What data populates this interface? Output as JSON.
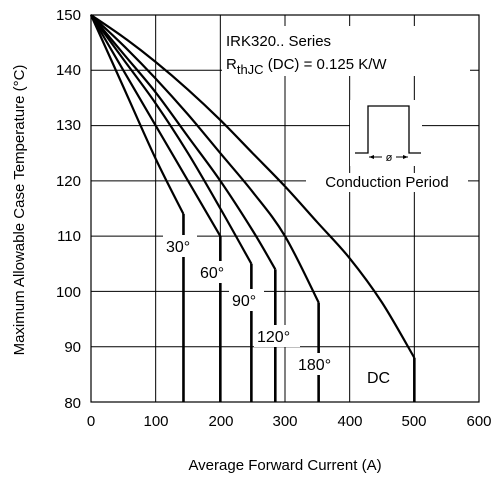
{
  "chart_data": {
    "type": "line",
    "xlabel": "Average Forward Current (A)",
    "ylabel": "Maximum Allowable Case Temperature (°C)",
    "xlim": [
      0,
      600
    ],
    "ylim": [
      80,
      150
    ],
    "x_ticks": [
      "0",
      "100",
      "200",
      "300",
      "400",
      "500",
      "600"
    ],
    "y_ticks": [
      "80",
      "90",
      "100",
      "110",
      "120",
      "130",
      "140",
      "150"
    ],
    "grid": true,
    "annotations": {
      "series_title": "IRK320.. Series",
      "rth_prefix": "R",
      "rth_sub": "thJC",
      "rth_suffix": " (DC) = 0.125 K/W",
      "phi": "ø",
      "conduction": "Conduction Period"
    },
    "series": [
      {
        "name": "30°",
        "x": [
          0,
          50,
          100,
          143,
          143
        ],
        "y": [
          150,
          137,
          124,
          114,
          80
        ]
      },
      {
        "name": "60°",
        "x": [
          0,
          50,
          100,
          150,
          200,
          200
        ],
        "y": [
          150,
          140,
          130,
          120,
          110,
          80
        ]
      },
      {
        "name": "90°",
        "x": [
          0,
          50,
          100,
          150,
          200,
          248,
          248
        ],
        "y": [
          150,
          142,
          134,
          125,
          115,
          105,
          80
        ]
      },
      {
        "name": "120°",
        "x": [
          0,
          50,
          100,
          150,
          200,
          250,
          285,
          285
        ],
        "y": [
          150,
          143,
          136,
          128,
          120,
          111,
          104,
          80
        ]
      },
      {
        "name": "180°",
        "x": [
          0,
          50,
          100,
          150,
          200,
          250,
          300,
          352,
          352
        ],
        "y": [
          150,
          144.5,
          138.5,
          132,
          125,
          118,
          110,
          98,
          80
        ]
      },
      {
        "name": "DC",
        "x": [
          0,
          50,
          100,
          150,
          200,
          250,
          300,
          350,
          400,
          450,
          500,
          500
        ],
        "y": [
          150,
          146,
          141.5,
          136.5,
          131,
          125,
          119,
          112.5,
          106,
          98,
          88,
          80
        ]
      }
    ]
  }
}
